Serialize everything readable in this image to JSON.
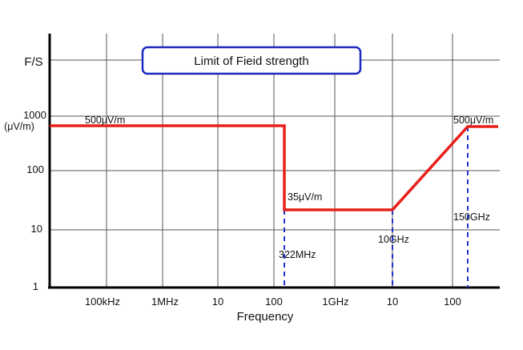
{
  "chart_data": {
    "type": "line",
    "title": "Limit of Fieid strength",
    "xlabel": "Frequency",
    "ylabel": "F/S",
    "ylabel_unit": "(μV/m)",
    "x_scale": "log",
    "y_scale": "log",
    "x_ticks": [
      "100kHz",
      "1MHz",
      "10",
      "100",
      "1GHz",
      "10",
      "100"
    ],
    "y_ticks": [
      "1000",
      "100",
      "10",
      "1"
    ],
    "series": [
      {
        "color": "#e8201a",
        "points": [
          {
            "x": "10kHz",
            "y": 500
          },
          {
            "x": "322MHz",
            "y": 500
          },
          {
            "x": "322MHz",
            "y": 35
          },
          {
            "x": "10GHz",
            "y": 35
          },
          {
            "x": "150GHz",
            "y": 500
          },
          {
            "x": "300GHz",
            "y": 500
          }
        ]
      }
    ],
    "annotations": [
      {
        "text": "500μV/m"
      },
      {
        "text": "35μV/m"
      },
      {
        "text": "500μV/m"
      },
      {
        "text": "322MHz"
      },
      {
        "text": "10GHz"
      },
      {
        "text": "150GHz"
      }
    ],
    "grid": true,
    "colors": {
      "line": "#e8201a",
      "markers": "#2233cc",
      "title_border": "#1a2bbf"
    }
  }
}
